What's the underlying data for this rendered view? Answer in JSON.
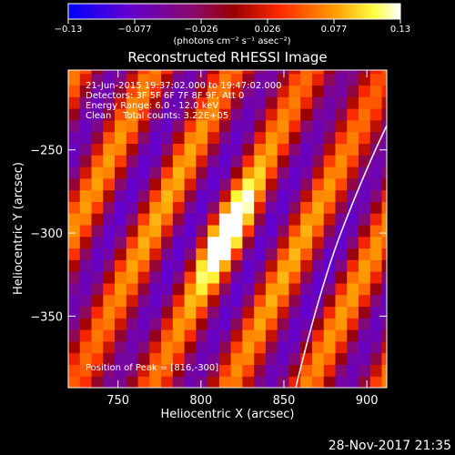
{
  "chart_data": {
    "type": "heatmap",
    "title": "Reconstructed RHESSI Image",
    "xlabel": "Heliocentric X (arcsec)",
    "ylabel": "Heliocentric Y (arcsec)",
    "xlim": [
      720,
      912
    ],
    "ylim": [
      -393,
      -202
    ],
    "xticks": [
      750,
      800,
      850,
      900
    ],
    "yticks": [
      -250,
      -300,
      -350
    ],
    "info_lines": [
      "21-Jun-2015 19:37:02.000 to 19:47:02.000",
      "Detectors: 3F 5F 6F 7F 8F 9F, Att 0",
      "Energy Range: 6.0 - 12.0 keV",
      "Clean    Total counts: 3.22E+05"
    ],
    "peak_label": "Position of Peak = [816,-300]",
    "peak": {
      "x": 816,
      "y": -300
    },
    "colorbar": {
      "min": -0.13,
      "max": 0.13,
      "tick_labels": [
        "−0.13",
        "−0.077",
        "−0.026",
        "0.026",
        "0.077",
        "0.13"
      ],
      "unit_label": "(photons cm⁻² s⁻¹ asec⁻²)",
      "colors": [
        "#0000ff",
        "#7a00c8",
        "#8a0a6a",
        "#b80000",
        "#ff2a00",
        "#ff9a00",
        "#ffff40",
        "#ffffff"
      ]
    },
    "pattern": {
      "stripe_period_arcsec": 42,
      "stripe_direction": "lower-left to upper-right",
      "peak_value": 0.13
    },
    "limb": "white solar limb arc at right edge"
  },
  "timestamp": "28-Nov-2017 21:35"
}
